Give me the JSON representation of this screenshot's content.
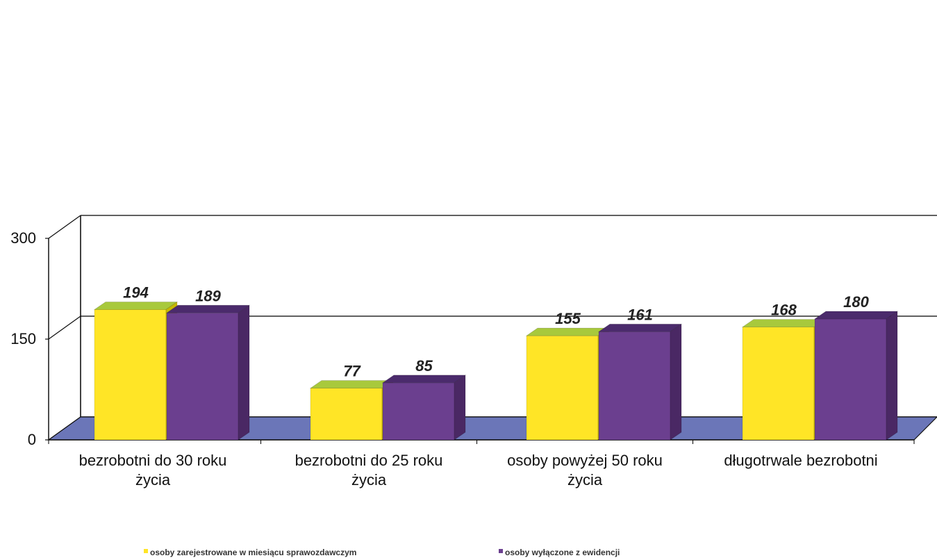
{
  "chart_data": {
    "type": "bar",
    "title": "",
    "xlabel": "",
    "ylabel": "",
    "ylim": [
      0,
      300
    ],
    "yticks": [
      0,
      150,
      300
    ],
    "grid": true,
    "legend_position": "bottom",
    "categories": [
      [
        "bezrobotni do 30 roku",
        "życia"
      ],
      [
        "bezrobotni do 25 roku",
        "życia"
      ],
      [
        "osoby powyżej 50 roku",
        "życia"
      ],
      [
        "długotrwale bezrobotni"
      ]
    ],
    "series": [
      {
        "name": "osoby zarejestrowane w miesiącu sprawozdawczym",
        "values": [
          194,
          77,
          155,
          168
        ],
        "colors": {
          "front": "#ffe526",
          "top": "#a8c93c",
          "side": "#c7b800"
        }
      },
      {
        "name": "osoby wyłączone z ewidencji",
        "values": [
          189,
          85,
          161,
          180
        ],
        "colors": {
          "front": "#6b3f8f",
          "top": "#4b2b6c",
          "side": "#4a2864"
        }
      }
    ],
    "floor_color": "#6b76b8",
    "floor_edge_color": "#111111",
    "axis_color": "#111111",
    "grid_color": "#000000",
    "label_color": "#111111",
    "value_label_color": "#222222"
  }
}
